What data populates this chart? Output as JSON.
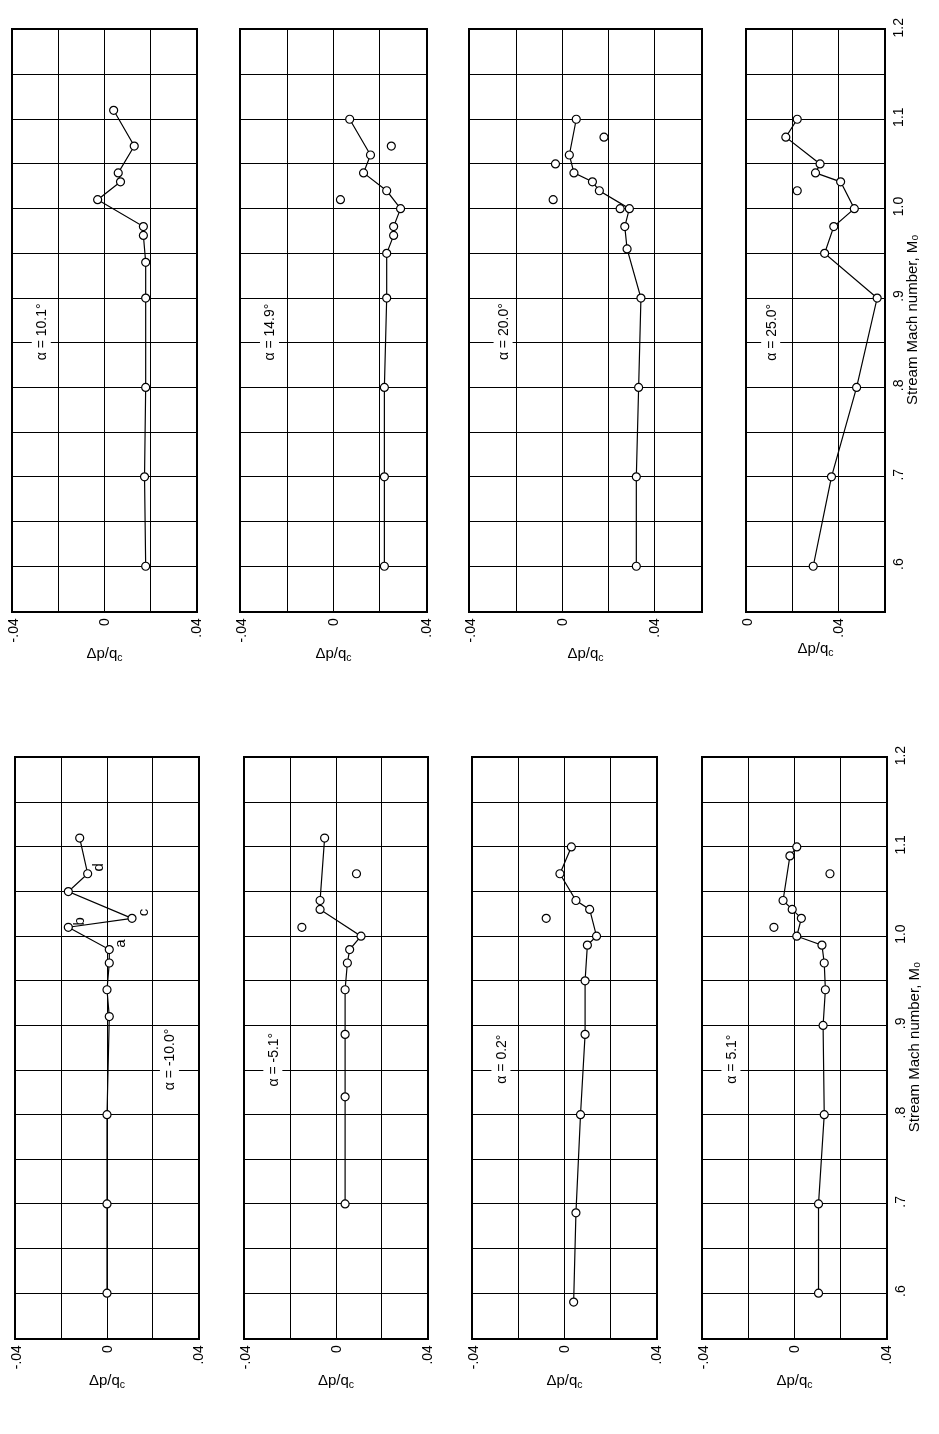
{
  "chart_data": [
    {
      "type": "line",
      "title": "α = 10.1°",
      "xlabel": "Δp/q$_{c}$",
      "xlim": [
        -0.04,
        0.04
      ],
      "xticks": [
        {
          "value": -0.04,
          "label": "-.04"
        },
        {
          "value": -0.02,
          "label": null
        },
        0,
        {
          "value": 0.02,
          "label": null
        },
        {
          "value": 0.04,
          "label": ".04"
        }
      ],
      "ylim": [
        0.55,
        1.2
      ],
      "yticks": [
        {
          "value": 0.55,
          "label": null
        },
        {
          "value": 0.6,
          "label": null
        },
        {
          "value": 0.65,
          "label": null
        },
        {
          "value": 0.7,
          "label": null
        },
        {
          "value": 0.75,
          "label": null
        },
        {
          "value": 0.8,
          "label": null
        },
        {
          "value": 0.85,
          "label": null
        },
        {
          "value": 0.9,
          "label": null
        },
        {
          "value": 0.95,
          "label": null
        },
        {
          "value": 1.0,
          "label": null
        },
        {
          "value": 1.05,
          "label": null
        },
        {
          "value": 1.1,
          "label": null
        },
        {
          "value": 1.15,
          "label": null
        },
        {
          "value": 1.2,
          "label": null
        }
      ],
      "grid": true,
      "marker": "circle",
      "line_style": "solid",
      "tick_labels": "x",
      "series": [
        {
          "color": "#000000",
          "x": [
            0.018,
            0.0175,
            0.018,
            0.018,
            0.018,
            0.017,
            0.017,
            -0.003,
            0.007,
            0.006,
            0.013,
            0.004
          ],
          "values": [
            0.6,
            0.7,
            0.8,
            0.9,
            0.94,
            0.97,
            0.98,
            1.01,
            1.03,
            1.04,
            1.07,
            1.11
          ]
        }
      ]
    },
    {
      "type": "line",
      "title": "α = 14.9°",
      "xlabel": "Δp/q$_{c}$",
      "xlim": [
        -0.04,
        0.04
      ],
      "xticks": [
        {
          "value": -0.04,
          "label": "-.04"
        },
        {
          "value": -0.02,
          "label": null
        },
        0,
        {
          "value": 0.02,
          "label": null
        },
        {
          "value": 0.04,
          "label": ".04"
        }
      ],
      "ylim": [
        0.55,
        1.2
      ],
      "yticks": [
        {
          "value": 0.55,
          "label": null
        },
        {
          "value": 0.6,
          "label": null
        },
        {
          "value": 0.65,
          "label": null
        },
        {
          "value": 0.7,
          "label": null
        },
        {
          "value": 0.75,
          "label": null
        },
        {
          "value": 0.8,
          "label": null
        },
        {
          "value": 0.85,
          "label": null
        },
        {
          "value": 0.9,
          "label": null
        },
        {
          "value": 0.95,
          "label": null
        },
        {
          "value": 1.0,
          "label": null
        },
        {
          "value": 1.05,
          "label": null
        },
        {
          "value": 1.1,
          "label": null
        },
        {
          "value": 1.15,
          "label": null
        },
        {
          "value": 1.2,
          "label": null
        }
      ],
      "grid": true,
      "marker": "circle",
      "line_style": "solid",
      "tick_labels": "x",
      "series": [
        {
          "color": "#000000",
          "x": [
            0.022,
            0.022,
            0.022,
            0.023,
            0.023,
            0.026,
            0.026,
            0.029,
            0.023,
            0.013,
            0.016,
            0.007
          ],
          "values": [
            0.6,
            0.7,
            0.8,
            0.9,
            0.95,
            0.97,
            0.98,
            1.0,
            1.02,
            1.04,
            1.06,
            1.1
          ]
        },
        {
          "type": "scatter",
          "color": "#000000",
          "x": [
            0.003,
            0.025
          ],
          "values": [
            1.01,
            1.07
          ]
        }
      ]
    },
    {
      "type": "line",
      "title": "α = 20.0°",
      "xlabel": "Δp/q$_{c}$",
      "xlim": [
        -0.04,
        0.06
      ],
      "xticks": [
        {
          "value": -0.04,
          "label": "-.04"
        },
        {
          "value": -0.02,
          "label": null
        },
        0,
        {
          "value": 0.02,
          "label": null
        },
        {
          "value": 0.04,
          "label": ".04"
        },
        {
          "value": 0.06,
          "label": null
        }
      ],
      "ylim": [
        0.55,
        1.2
      ],
      "yticks": [
        {
          "value": 0.55,
          "label": null
        },
        {
          "value": 0.6,
          "label": null
        },
        {
          "value": 0.65,
          "label": null
        },
        {
          "value": 0.7,
          "label": null
        },
        {
          "value": 0.75,
          "label": null
        },
        {
          "value": 0.8,
          "label": null
        },
        {
          "value": 0.85,
          "label": null
        },
        {
          "value": 0.9,
          "label": null
        },
        {
          "value": 0.95,
          "label": null
        },
        {
          "value": 1.0,
          "label": null
        },
        {
          "value": 1.05,
          "label": null
        },
        {
          "value": 1.1,
          "label": null
        },
        {
          "value": 1.15,
          "label": null
        },
        {
          "value": 1.2,
          "label": null
        }
      ],
      "grid": true,
      "marker": "circle",
      "line_style": "solid",
      "tick_labels": "x",
      "series": [
        {
          "color": "#000000",
          "x": [
            0.032,
            0.032,
            0.033,
            0.034,
            0.028,
            0.027,
            0.029,
            0.016,
            0.013,
            0.005,
            0.003,
            0.006
          ],
          "values": [
            0.6,
            0.7,
            0.8,
            0.9,
            0.955,
            0.98,
            1.0,
            1.02,
            1.03,
            1.04,
            1.06,
            1.1
          ]
        },
        {
          "type": "scatter",
          "color": "#000000",
          "x": [
            0.025,
            -0.004,
            -0.003,
            0.018
          ],
          "values": [
            1.0,
            1.01,
            1.05,
            1.08
          ]
        }
      ]
    },
    {
      "type": "line",
      "title": "α = 25.0°",
      "xlabel": "Δp/q$_{c}$",
      "ylabel": "Stream Mach number, M₀",
      "xlim": [
        0,
        0.06
      ],
      "xticks": [
        0,
        {
          "value": 0.02,
          "label": null
        },
        {
          "value": 0.04,
          "label": ".04"
        },
        {
          "value": 0.06,
          "label": null
        }
      ],
      "ylim": [
        0.55,
        1.2
      ],
      "yticks": [
        {
          "value": 0.55,
          "label": null
        },
        {
          "value": 0.6,
          "label": ".6"
        },
        {
          "value": 0.65,
          "label": null
        },
        {
          "value": 0.7,
          "label": ".7"
        },
        {
          "value": 0.75,
          "label": null
        },
        {
          "value": 0.8,
          "label": ".8"
        },
        {
          "value": 0.85,
          "label": null
        },
        {
          "value": 0.9,
          "label": ".9"
        },
        {
          "value": 0.95,
          "label": null
        },
        {
          "value": 1.0,
          "label": "1.0"
        },
        {
          "value": 1.05,
          "label": null
        },
        {
          "value": 1.1,
          "label": "1.1"
        },
        {
          "value": 1.15,
          "label": null
        },
        {
          "value": 1.2,
          "label": "1.2"
        }
      ],
      "grid": true,
      "marker": "circle",
      "line_style": "solid",
      "series": [
        {
          "color": "#000000",
          "x": [
            0.029,
            0.037,
            0.048,
            0.057,
            0.034,
            0.038,
            0.047,
            0.041,
            0.03,
            0.032,
            0.017,
            0.022
          ],
          "values": [
            0.6,
            0.7,
            0.8,
            0.9,
            0.95,
            0.98,
            1.0,
            1.03,
            1.04,
            1.05,
            1.08,
            1.1
          ]
        },
        {
          "type": "scatter",
          "color": "#000000",
          "x": [
            0.022
          ],
          "values": [
            1.02
          ]
        }
      ]
    },
    {
      "type": "line",
      "title": "α = -10.0°",
      "xlabel": "Δp/q$_{c}$",
      "xlim": [
        -0.04,
        0.04
      ],
      "xticks": [
        {
          "value": -0.04,
          "label": "-.04"
        },
        {
          "value": -0.02,
          "label": null
        },
        0,
        {
          "value": 0.02,
          "label": null
        },
        {
          "value": 0.04,
          "label": ".04"
        }
      ],
      "ylim": [
        0.55,
        1.2
      ],
      "yticks": [
        {
          "value": 0.55,
          "label": null
        },
        {
          "value": 0.6,
          "label": null
        },
        {
          "value": 0.65,
          "label": null
        },
        {
          "value": 0.7,
          "label": null
        },
        {
          "value": 0.75,
          "label": null
        },
        {
          "value": 0.8,
          "label": null
        },
        {
          "value": 0.85,
          "label": null
        },
        {
          "value": 0.9,
          "label": null
        },
        {
          "value": 0.95,
          "label": null
        },
        {
          "value": 1.0,
          "label": null
        },
        {
          "value": 1.05,
          "label": null
        },
        {
          "value": 1.1,
          "label": null
        },
        {
          "value": 1.15,
          "label": null
        },
        {
          "value": 1.2,
          "label": null
        }
      ],
      "grid": true,
      "marker": "circle",
      "line_style": "solid",
      "tick_labels": "x",
      "annotations": [
        {
          "text": "a",
          "x": 0.001,
          "y": 0.985
        },
        {
          "text": "b",
          "x": -0.017,
          "y": 1.01
        },
        {
          "text": "c",
          "x": 0.011,
          "y": 1.02
        },
        {
          "text": "d",
          "x": -0.0085,
          "y": 1.07
        }
      ],
      "series": [
        {
          "color": "#000000",
          "x": [
            0,
            0,
            0,
            0.001,
            0,
            0.001,
            0.001,
            -0.017,
            0.011,
            -0.017,
            -0.0085,
            -0.012
          ],
          "values": [
            0.6,
            0.7,
            0.8,
            0.91,
            0.94,
            0.97,
            0.985,
            1.01,
            1.02,
            1.05,
            1.07,
            1.11
          ]
        }
      ]
    },
    {
      "type": "line",
      "title": "α = -5.1°",
      "xlabel": "Δp/q$_{c}$",
      "xlim": [
        -0.04,
        0.04
      ],
      "xticks": [
        {
          "value": -0.04,
          "label": "-.04"
        },
        {
          "value": -0.02,
          "label": null
        },
        0,
        {
          "value": 0.02,
          "label": null
        },
        {
          "value": 0.04,
          "label": ".04"
        }
      ],
      "ylim": [
        0.55,
        1.2
      ],
      "yticks": [
        {
          "value": 0.55,
          "label": null
        },
        {
          "value": 0.6,
          "label": null
        },
        {
          "value": 0.65,
          "label": null
        },
        {
          "value": 0.7,
          "label": null
        },
        {
          "value": 0.75,
          "label": null
        },
        {
          "value": 0.8,
          "label": null
        },
        {
          "value": 0.85,
          "label": null
        },
        {
          "value": 0.9,
          "label": null
        },
        {
          "value": 0.95,
          "label": null
        },
        {
          "value": 1.0,
          "label": null
        },
        {
          "value": 1.05,
          "label": null
        },
        {
          "value": 1.1,
          "label": null
        },
        {
          "value": 1.15,
          "label": null
        },
        {
          "value": 1.2,
          "label": null
        }
      ],
      "grid": true,
      "marker": "circle",
      "line_style": "solid",
      "tick_labels": "x",
      "series": [
        {
          "color": "#000000",
          "x": [
            0.004,
            0.004,
            0.004,
            0.004,
            0.005,
            0.006,
            0.011,
            -0.007,
            -0.007,
            -0.005
          ],
          "values": [
            0.7,
            0.82,
            0.89,
            0.94,
            0.97,
            0.985,
            1.0,
            1.03,
            1.04,
            1.11
          ]
        },
        {
          "type": "scatter",
          "color": "#000000",
          "x": [
            -0.015,
            0.009
          ],
          "values": [
            1.01,
            1.07
          ]
        }
      ]
    },
    {
      "type": "line",
      "title": "α = 0.2°",
      "xlabel": "Δp/q$_{c}$",
      "xlim": [
        -0.04,
        0.04
      ],
      "xticks": [
        {
          "value": -0.04,
          "label": "-.04"
        },
        {
          "value": -0.02,
          "label": null
        },
        0,
        {
          "value": 0.02,
          "label": null
        },
        {
          "value": 0.04,
          "label": ".04"
        }
      ],
      "ylim": [
        0.55,
        1.2
      ],
      "yticks": [
        {
          "value": 0.55,
          "label": null
        },
        {
          "value": 0.6,
          "label": null
        },
        {
          "value": 0.65,
          "label": null
        },
        {
          "value": 0.7,
          "label": null
        },
        {
          "value": 0.75,
          "label": null
        },
        {
          "value": 0.8,
          "label": null
        },
        {
          "value": 0.85,
          "label": null
        },
        {
          "value": 0.9,
          "label": null
        },
        {
          "value": 0.95,
          "label": null
        },
        {
          "value": 1.0,
          "label": null
        },
        {
          "value": 1.05,
          "label": null
        },
        {
          "value": 1.1,
          "label": null
        },
        {
          "value": 1.15,
          "label": null
        },
        {
          "value": 1.2,
          "label": null
        }
      ],
      "grid": true,
      "marker": "circle",
      "line_style": "solid",
      "tick_labels": "x",
      "series": [
        {
          "color": "#000000",
          "x": [
            0.004,
            0.005,
            0.007,
            0.009,
            0.009,
            0.01,
            0.014,
            0.011,
            0.005,
            -0.002,
            0.003
          ],
          "values": [
            0.59,
            0.69,
            0.8,
            0.89,
            0.95,
            0.99,
            1.0,
            1.03,
            1.04,
            1.07,
            1.1
          ]
        },
        {
          "type": "scatter",
          "color": "#000000",
          "x": [
            -0.008
          ],
          "values": [
            1.02
          ]
        }
      ]
    },
    {
      "type": "line",
      "title": "α = 5.1°",
      "xlabel": "Δp/q$_{c}$",
      "ylabel": "Stream Mach number, M₀",
      "xlim": [
        -0.04,
        0.04
      ],
      "xticks": [
        {
          "value": -0.04,
          "label": "-.04"
        },
        {
          "value": -0.02,
          "label": null
        },
        0,
        {
          "value": 0.02,
          "label": null
        },
        {
          "value": 0.04,
          "label": ".04"
        }
      ],
      "ylim": [
        0.55,
        1.2
      ],
      "yticks": [
        {
          "value": 0.55,
          "label": null
        },
        {
          "value": 0.6,
          "label": ".6"
        },
        {
          "value": 0.65,
          "label": null
        },
        {
          "value": 0.7,
          "label": ".7"
        },
        {
          "value": 0.75,
          "label": null
        },
        {
          "value": 0.8,
          "label": ".8"
        },
        {
          "value": 0.85,
          "label": null
        },
        {
          "value": 0.9,
          "label": ".9"
        },
        {
          "value": 0.95,
          "label": null
        },
        {
          "value": 1.0,
          "label": "1.0"
        },
        {
          "value": 1.05,
          "label": null
        },
        {
          "value": 1.1,
          "label": "1.1"
        },
        {
          "value": 1.15,
          "label": null
        },
        {
          "value": 1.2,
          "label": "1.2"
        }
      ],
      "grid": true,
      "marker": "circle",
      "line_style": "solid",
      "series": [
        {
          "color": "#000000",
          "x": [
            0.0105,
            0.0105,
            0.013,
            0.0125,
            0.0135,
            0.013,
            0.012,
            0.001,
            0.003,
            -0.001,
            -0.005,
            -0.002,
            0.001
          ],
          "values": [
            0.6,
            0.7,
            0.8,
            0.9,
            0.94,
            0.97,
            0.99,
            1.0,
            1.02,
            1.03,
            1.04,
            1.09,
            1.1
          ]
        },
        {
          "type": "scatter",
          "color": "#000000",
          "x": [
            -0.009,
            0.0155
          ],
          "values": [
            1.01,
            1.07
          ]
        }
      ]
    }
  ]
}
